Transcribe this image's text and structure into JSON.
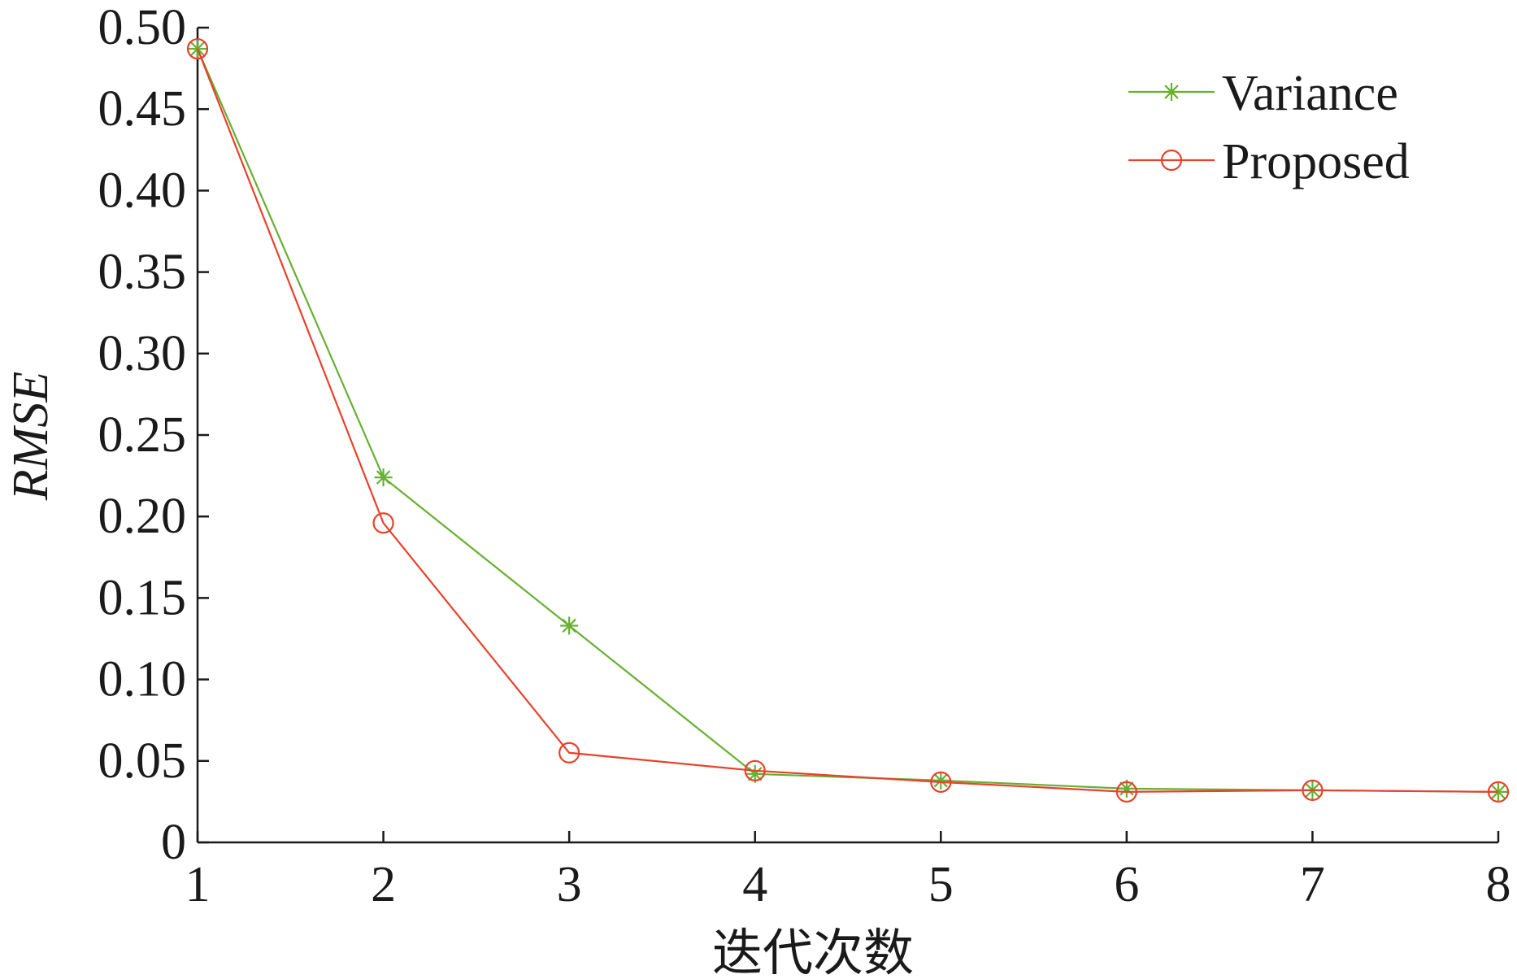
{
  "chart_data": {
    "type": "line",
    "title": "",
    "xlabel": "迭代次数",
    "ylabel": "RMSE",
    "x": [
      1,
      2,
      3,
      4,
      5,
      6,
      7,
      8
    ],
    "xlim": [
      1,
      8
    ],
    "ylim": [
      0,
      0.5
    ],
    "x_ticks": [
      "1",
      "2",
      "3",
      "4",
      "5",
      "6",
      "7",
      "8"
    ],
    "y_ticks": [
      "0",
      "0.05",
      "0.10",
      "0.15",
      "0.20",
      "0.25",
      "0.30",
      "0.35",
      "0.40",
      "0.45",
      "0.50"
    ],
    "grid": false,
    "legend_position": "top-right",
    "series": [
      {
        "name": "Variance",
        "color": "#66b032",
        "marker": "asterisk",
        "values": [
          0.487,
          0.224,
          0.133,
          0.042,
          0.038,
          0.033,
          0.032,
          0.031
        ]
      },
      {
        "name": "Proposed",
        "color": "#e8412c",
        "marker": "circle",
        "values": [
          0.487,
          0.196,
          0.055,
          0.044,
          0.037,
          0.031,
          0.032,
          0.031
        ]
      }
    ]
  }
}
